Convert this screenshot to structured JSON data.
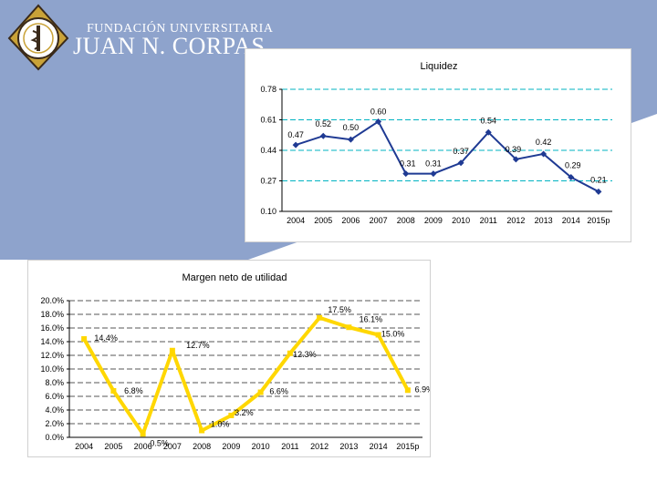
{
  "brand": {
    "line1": "FUNDACIÓN UNIVERSITARIA",
    "line2": "JUAN N. CORPAS",
    "colors": {
      "header_blue": "#8ea3cc",
      "logo_gold": "#c9a238",
      "logo_dark": "#3a2a1a"
    }
  },
  "colors": {
    "line": "#1f3a93",
    "marker": "#1f3a93",
    "grid": "#00b3c2",
    "axis": "#000000",
    "line2": "#ffd700"
  },
  "chart_data": [
    {
      "type": "line",
      "title": "Liquidez",
      "categories": [
        "2004",
        "2005",
        "2006",
        "2007",
        "2008",
        "2009",
        "2010",
        "2011",
        "2012",
        "2013",
        "2014",
        "2015p"
      ],
      "values": [
        0.47,
        0.52,
        0.5,
        0.6,
        0.31,
        0.31,
        0.37,
        0.54,
        0.39,
        0.42,
        0.29,
        0.21
      ],
      "value_labels": [
        "0.47",
        "0.52",
        "0.50",
        "0.60",
        "0.31",
        "0.31",
        "0.37",
        "0.54",
        "0.39",
        "0.42",
        "0.29",
        "0.21"
      ],
      "y_ticks": [
        "0.10",
        "0.27",
        "0.44",
        "0.61",
        "0.78"
      ],
      "ylim": [
        0.1,
        0.78
      ],
      "grid": true,
      "xlabel": "",
      "ylabel": ""
    },
    {
      "type": "line",
      "title": "Margen neto de utilidad",
      "categories": [
        "2004",
        "2005",
        "2006",
        "2007",
        "2008",
        "2009",
        "2010",
        "2011",
        "2012",
        "2013",
        "2014",
        "2015p"
      ],
      "values": [
        14.4,
        6.8,
        0.5,
        12.7,
        1.0,
        3.2,
        6.6,
        12.3,
        17.5,
        16.1,
        15.0,
        6.9
      ],
      "value_labels": [
        "14.4%",
        "6.8%",
        "0.5%",
        "12.7%",
        "1.0%",
        "3.2%",
        "6.6%",
        "12.3%",
        "17.5%",
        "16.1%",
        "15.0%",
        "6.9%"
      ],
      "y_ticks": [
        "0.0%",
        "2.0%",
        "4.0%",
        "6.0%",
        "8.0%",
        "10.0%",
        "12.0%",
        "14.0%",
        "16.0%",
        "18.0%",
        "20.0%"
      ],
      "ylim": [
        0,
        20
      ],
      "grid": true,
      "xlabel": "",
      "ylabel": ""
    }
  ]
}
